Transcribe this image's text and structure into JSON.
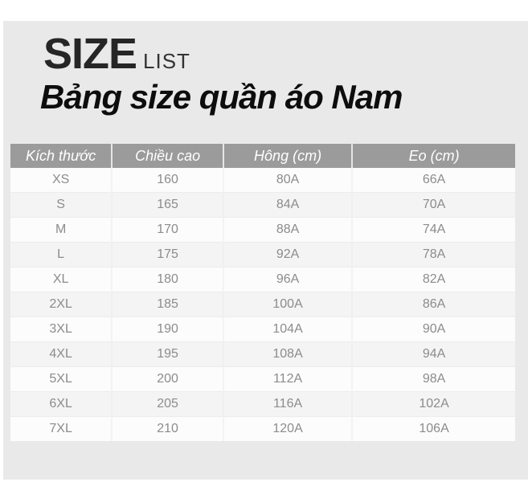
{
  "page": {
    "background": "#ffffff",
    "panel_background": "#e9e9e9"
  },
  "header": {
    "brand_word": "SIZE",
    "brand_sub": "LIST",
    "title": "Bảng size quần áo Nam"
  },
  "table": {
    "header_bg": "#9b9b9b",
    "header_text_color": "#ffffff",
    "body_text_color": "#8c8c8c",
    "row_color_odd": "#fcfcfc",
    "row_color_even": "#f4f4f4",
    "columns": [
      "Kích thước",
      "Chiều cao",
      "Hông (cm)",
      "Eo (cm)"
    ],
    "rows": [
      [
        "XS",
        "160",
        "80A",
        "66A"
      ],
      [
        "S",
        "165",
        "84A",
        "70A"
      ],
      [
        "M",
        "170",
        "88A",
        "74A"
      ],
      [
        "L",
        "175",
        "92A",
        "78A"
      ],
      [
        "XL",
        "180",
        "96A",
        "82A"
      ],
      [
        "2XL",
        "185",
        "100A",
        "86A"
      ],
      [
        "3XL",
        "190",
        "104A",
        "90A"
      ],
      [
        "4XL",
        "195",
        "108A",
        "94A"
      ],
      [
        "5XL",
        "200",
        "112A",
        "98A"
      ],
      [
        "6XL",
        "205",
        "116A",
        "102A"
      ],
      [
        "7XL",
        "210",
        "120A",
        "106A"
      ]
    ]
  }
}
